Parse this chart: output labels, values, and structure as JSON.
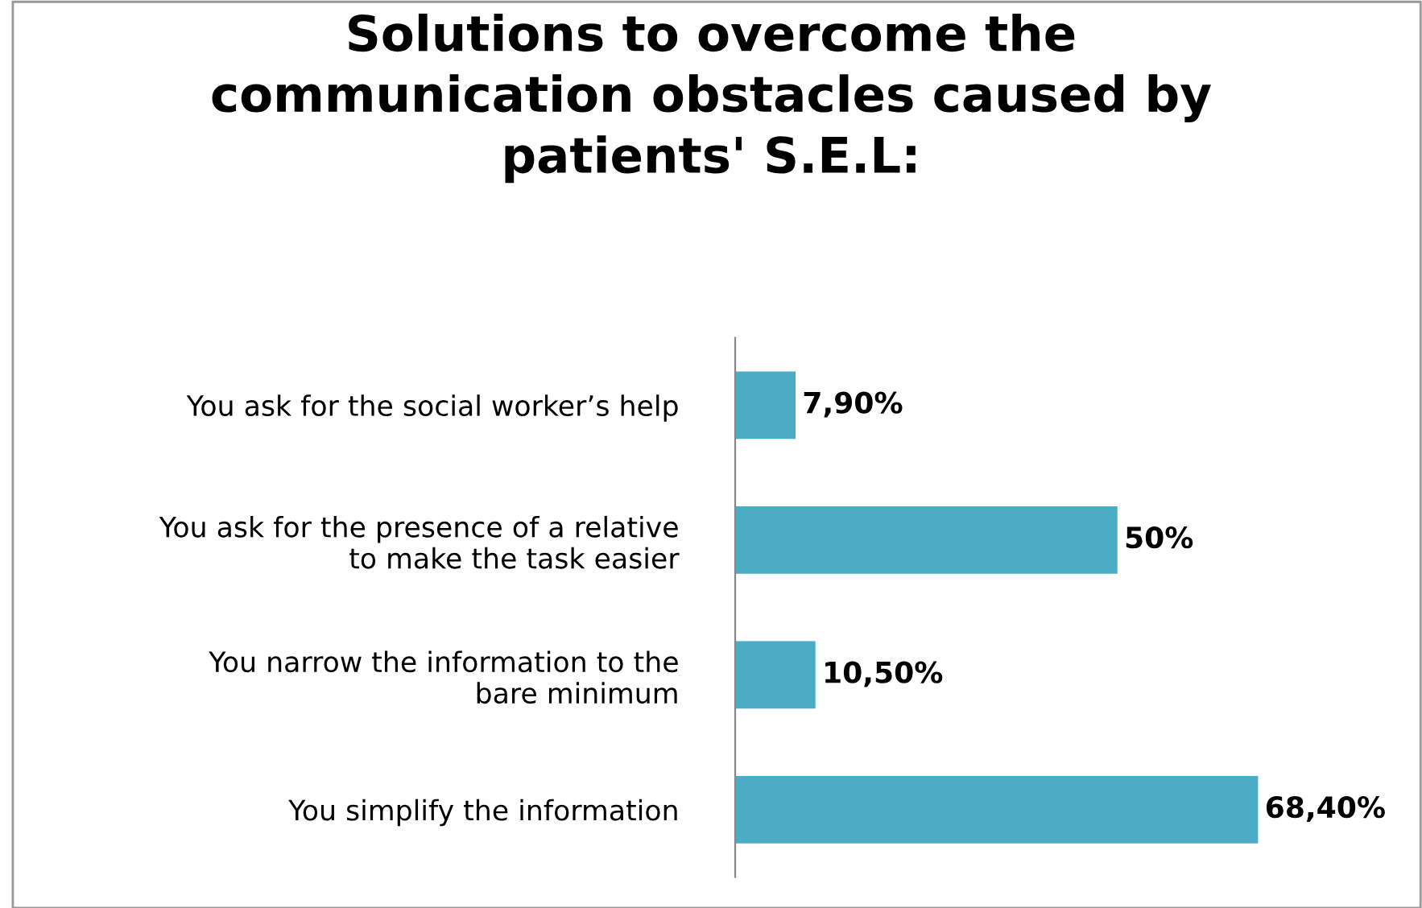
{
  "chart_data": {
    "type": "bar",
    "orientation": "horizontal",
    "title": "Solutions to overcome the\ncommunication obstacles caused by\npatients' S.E.L:",
    "categories": [
      "You ask for the social worker’s help",
      "You ask for the presence of a relative\nto make the task easier",
      "You narrow the information to the\nbare minimum",
      "You simplify the information"
    ],
    "values": [
      7.9,
      50,
      10.5,
      68.4
    ],
    "value_labels": [
      "7,90%",
      "50%",
      "10,50%",
      "68,40%"
    ],
    "color": "#4bacc6",
    "grid": false,
    "legend": false
  }
}
